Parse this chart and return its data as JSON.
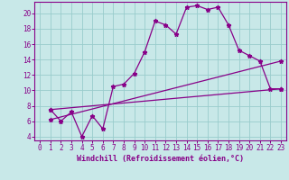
{
  "xlabel": "Windchill (Refroidissement éolien,°C)",
  "bg_color": "#c8e8e8",
  "line_color": "#880088",
  "grid_color": "#99cccc",
  "xlim": [
    -0.5,
    23.5
  ],
  "ylim": [
    3.5,
    21.5
  ],
  "xticks": [
    0,
    1,
    2,
    3,
    4,
    5,
    6,
    7,
    8,
    9,
    10,
    11,
    12,
    13,
    14,
    15,
    16,
    17,
    18,
    19,
    20,
    21,
    22,
    23
  ],
  "yticks": [
    4,
    6,
    8,
    10,
    12,
    14,
    16,
    18,
    20
  ],
  "line1_x": [
    1,
    2,
    3,
    4,
    5,
    6,
    7,
    8,
    9,
    10,
    11,
    12,
    13,
    14,
    15,
    16,
    17,
    18,
    19,
    20,
    21,
    22,
    23
  ],
  "line1_y": [
    7.5,
    6.0,
    7.2,
    4.0,
    6.7,
    5.0,
    10.5,
    10.8,
    12.2,
    15.0,
    19.0,
    18.5,
    17.3,
    20.8,
    21.0,
    20.5,
    20.8,
    18.5,
    15.2,
    14.5,
    13.8,
    10.2,
    10.2
  ],
  "line2_x": [
    1,
    23
  ],
  "line2_y": [
    7.5,
    10.2
  ],
  "line3_x": [
    1,
    23
  ],
  "line3_y": [
    6.2,
    13.8
  ]
}
